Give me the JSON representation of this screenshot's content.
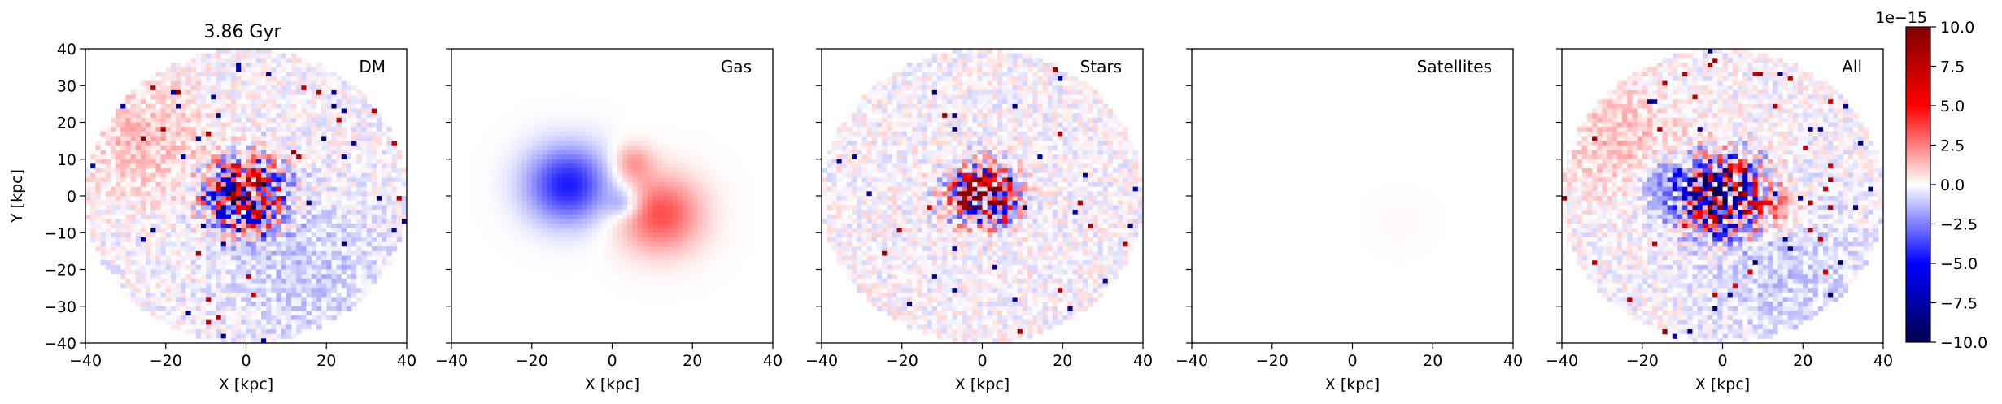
{
  "figure": {
    "title": "3.86 Gyr",
    "colorbar": {
      "colormap": "seismic",
      "min": -10.0,
      "max": 10.0,
      "offset_label": "1e−15",
      "ticks": [
        -10.0,
        -7.5,
        -5.0,
        -2.5,
        0.0,
        2.5,
        5.0,
        7.5,
        10.0
      ],
      "tick_labels": [
        "−10.0",
        "−7.5",
        "−5.0",
        "−2.5",
        "0.0",
        "2.5",
        "5.0",
        "7.5",
        "10.0"
      ]
    }
  },
  "chart_data": [
    {
      "type": "heatmap",
      "panel_label": "DM",
      "xlabel": "X [kpc]",
      "ylabel": "Y [kpc]",
      "xlim": [
        -40,
        40
      ],
      "ylim": [
        -40,
        40
      ],
      "xticks": [
        "−40",
        "−20",
        "0",
        "20",
        "40"
      ],
      "yticks": [
        "−40",
        "−30",
        "−20",
        "−10",
        "0",
        "10",
        "20",
        "30",
        "40"
      ],
      "extent_radius": 40,
      "features": [
        {
          "kind": "noisy_core",
          "x": 0,
          "y": 0,
          "radius": 12,
          "amplitude": 10
        },
        {
          "kind": "positive_lobe",
          "x": -25,
          "y": 15,
          "radius": 18,
          "amplitude": 1.2
        },
        {
          "kind": "negative_lobe",
          "x": 15,
          "y": -20,
          "radius": 25,
          "amplitude": -1.0
        }
      ]
    },
    {
      "type": "heatmap",
      "panel_label": "Gas",
      "xlabel": "X [kpc]",
      "ylabel": "",
      "xlim": [
        -40,
        40
      ],
      "ylim": [
        -40,
        40
      ],
      "xticks": [
        "−40",
        "−20",
        "0",
        "20",
        "40"
      ],
      "yticks": [],
      "extent_radius": 40,
      "features": [
        {
          "kind": "negative_lobe",
          "x": -11,
          "y": 3,
          "radius": 12,
          "amplitude": -4.5
        },
        {
          "kind": "positive_lobe",
          "x": 12,
          "y": -5,
          "radius": 12,
          "amplitude": 3.5
        },
        {
          "kind": "positive_lobe",
          "x": 5,
          "y": 9,
          "radius": 6,
          "amplitude": 2.0
        },
        {
          "kind": "negative_lobe",
          "x": 3,
          "y": -2,
          "radius": 5,
          "amplitude": -2.0
        }
      ]
    },
    {
      "type": "heatmap",
      "panel_label": "Stars",
      "xlabel": "X [kpc]",
      "ylabel": "",
      "xlim": [
        -40,
        40
      ],
      "ylim": [
        -40,
        40
      ],
      "xticks": [
        "−40",
        "−20",
        "0",
        "20",
        "40"
      ],
      "yticks": [],
      "extent_radius": 40,
      "features": [
        {
          "kind": "noisy_core",
          "x": 0,
          "y": 0,
          "radius": 10,
          "amplitude": 10
        },
        {
          "kind": "positive_lobe",
          "x": 0,
          "y": 0,
          "radius": 6,
          "amplitude": 6
        }
      ]
    },
    {
      "type": "heatmap",
      "panel_label": "Satellites",
      "xlabel": "X [kpc]",
      "ylabel": "",
      "xlim": [
        -40,
        40
      ],
      "ylim": [
        -40,
        40
      ],
      "xticks": [
        "−40",
        "−20",
        "0",
        "20",
        "40"
      ],
      "yticks": [],
      "extent_radius": 40,
      "features": [
        {
          "kind": "positive_lobe",
          "x": 12,
          "y": -7,
          "radius": 8,
          "amplitude": 0.15
        }
      ]
    },
    {
      "type": "heatmap",
      "panel_label": "All",
      "xlabel": "X [kpc]",
      "ylabel": "",
      "xlim": [
        -40,
        40
      ],
      "ylim": [
        -40,
        40
      ],
      "xticks": [
        "−40",
        "−20",
        "0",
        "20",
        "40"
      ],
      "yticks": [],
      "extent_radius": 40,
      "features": [
        {
          "kind": "noisy_core",
          "x": 0,
          "y": 0,
          "radius": 13,
          "amplitude": 10
        },
        {
          "kind": "negative_lobe",
          "x": -12,
          "y": 2,
          "radius": 9,
          "amplitude": -3.5
        },
        {
          "kind": "positive_lobe",
          "x": 12,
          "y": -3,
          "radius": 8,
          "amplitude": 2.5
        },
        {
          "kind": "positive_lobe",
          "x": -25,
          "y": 15,
          "radius": 18,
          "amplitude": 1.2
        },
        {
          "kind": "negative_lobe",
          "x": 15,
          "y": -20,
          "radius": 25,
          "amplitude": -1.0
        }
      ]
    }
  ]
}
